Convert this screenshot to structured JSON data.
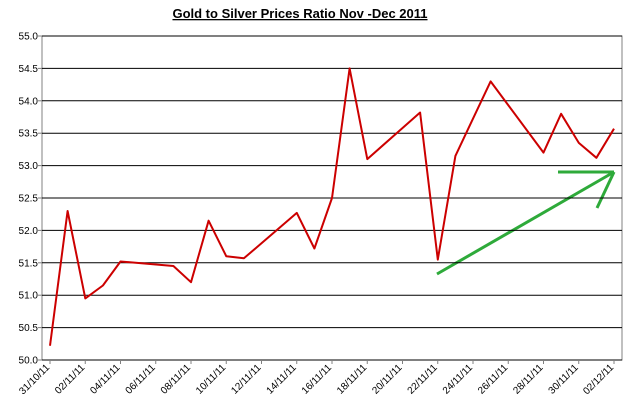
{
  "chart_data": {
    "type": "line",
    "title": "Gold to Silver Prices Ratio Nov -Dec 2011",
    "x": [
      "31/10/11",
      "01/11/11",
      "02/11/11",
      "03/11/11",
      "04/11/11",
      "07/11/11",
      "08/11/11",
      "09/11/11",
      "10/11/11",
      "11/11/11",
      "14/11/11",
      "15/11/11",
      "16/11/11",
      "17/11/11",
      "18/11/11",
      "21/11/11",
      "22/11/11",
      "23/11/11",
      "25/11/11",
      "28/11/11",
      "29/11/11",
      "30/11/11",
      "01/12/11",
      "02/12/11"
    ],
    "series": [
      {
        "color": "#cc0000",
        "values": [
          50.22,
          52.3,
          50.95,
          51.15,
          51.52,
          51.45,
          51.2,
          52.15,
          51.6,
          51.57,
          52.27,
          51.72,
          52.5,
          54.5,
          53.1,
          53.82,
          51.55,
          53.15,
          54.3,
          53.2,
          53.8,
          53.35,
          53.12,
          53.57
        ]
      }
    ],
    "xticks": [
      "31/10/11",
      "02/11/11",
      "04/11/11",
      "06/11/11",
      "08/11/11",
      "10/11/11",
      "12/11/11",
      "14/11/11",
      "16/11/11",
      "18/11/11",
      "20/11/11",
      "22/11/11",
      "24/11/11",
      "26/11/11",
      "28/11/11",
      "30/11/11",
      "02/12/11"
    ],
    "ylim": [
      50,
      55
    ],
    "yticks": [
      {
        "value": 50,
        "label": "50.0"
      },
      50.5,
      {
        "value": 51,
        "label": "51.0"
      },
      51.5,
      {
        "value": 52,
        "label": "52.0"
      },
      52.5,
      {
        "value": 53,
        "label": "53.0"
      },
      53.5,
      {
        "value": 54,
        "label": "54.0"
      },
      54.5,
      {
        "value": 55,
        "label": "55.0"
      }
    ],
    "grid": true
  }
}
